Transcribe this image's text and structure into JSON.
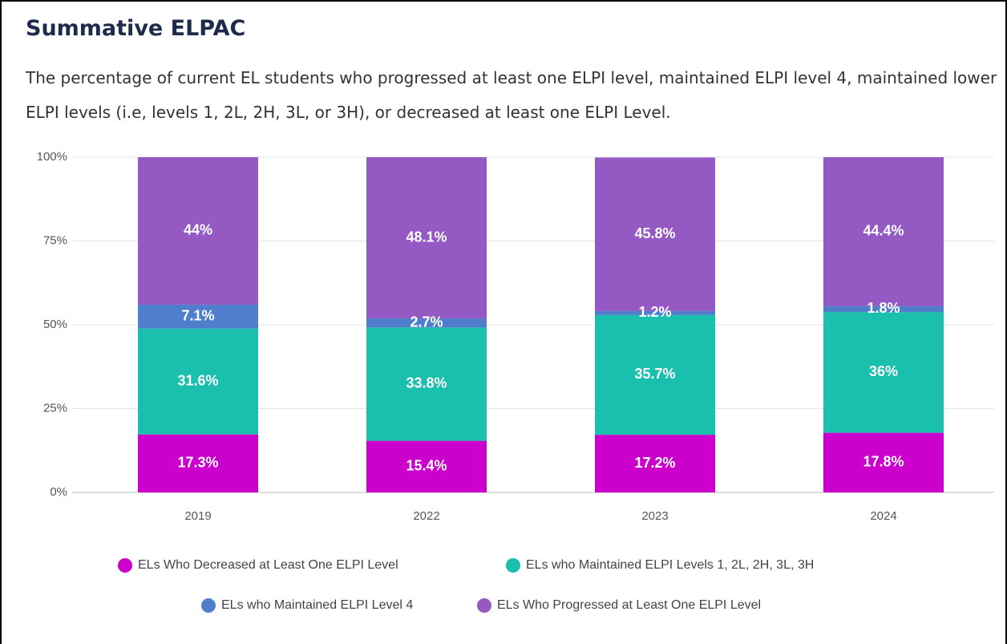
{
  "chart_data": {
    "type": "stacked_bar",
    "title": "Summative ELPAC",
    "subtitle": "The percentage of current EL students who progressed at least one ELPI level, maintained ELPI level 4, maintained lower ELPI levels (i.e, levels 1, 2L, 2H, 3L, or 3H), or decreased at least one ELPI Level.",
    "categories": [
      "2019",
      "2022",
      "2023",
      "2024"
    ],
    "series": [
      {
        "name": "ELs Who Decreased at Least One ELPI Level",
        "color": "#cc00cc",
        "values": [
          17.3,
          15.4,
          17.2,
          17.8
        ],
        "value_labels": [
          "17.3%",
          "15.4%",
          "17.2%",
          "17.8%"
        ]
      },
      {
        "name": "ELs who Maintained ELPI Levels 1, 2L, 2H, 3L, 3H",
        "color": "#1abfad",
        "values": [
          31.6,
          33.8,
          35.7,
          36
        ],
        "value_labels": [
          "31.6%",
          "33.8%",
          "35.7%",
          "36%"
        ]
      },
      {
        "name": "ELs who Maintained ELPI Level 4",
        "color": "#4f7fcc",
        "values": [
          7.1,
          2.7,
          1.2,
          1.8
        ],
        "value_labels": [
          "7.1%",
          "2.7%",
          "1.2%",
          "1.8%"
        ]
      },
      {
        "name": "ELs Who Progressed at Least One ELPI Level",
        "color": "#9459c2",
        "values": [
          44,
          48.1,
          45.8,
          44.4
        ],
        "value_labels": [
          "44%",
          "48.1%",
          "45.8%",
          "44.4%"
        ]
      }
    ],
    "ylim": [
      0,
      100
    ],
    "yticks": [
      {
        "value": 0,
        "label": "0%"
      },
      {
        "value": 25,
        "label": "25%"
      },
      {
        "value": 50,
        "label": "50%"
      },
      {
        "value": 75,
        "label": "75%"
      },
      {
        "value": 100,
        "label": "100%"
      }
    ],
    "grid": true
  }
}
